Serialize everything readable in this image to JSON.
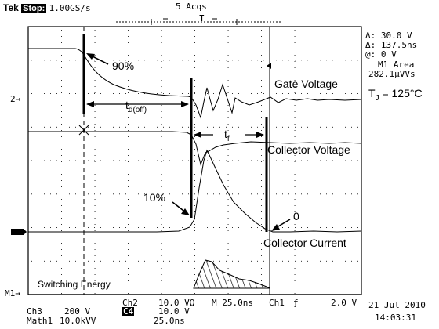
{
  "header": {
    "brand": "Tek",
    "state": "Stop:",
    "sample_rate": "1.00GS/s",
    "acqs": "5 Acqs",
    "trigger_marker": "T"
  },
  "measurements": {
    "delta_v": "Δ: 30.0 V",
    "delta_t": "Δ: 137.5ns",
    "at": "@: 0 V",
    "area_label": "M1 Area",
    "area_value": "282.1µVVs"
  },
  "temperature": {
    "label": "T",
    "sub": "J",
    "value": " = 125°C"
  },
  "annotations": {
    "p90": "90%",
    "p10": "10%",
    "zero": "0",
    "td_label": "t",
    "td_sub": "d(off)",
    "tf_label": "t",
    "tf_sub": "f",
    "gate_voltage": "Gate Voltage",
    "collector_voltage": "Collector Voltage",
    "collector_current": "Collector Current",
    "switching_energy": "Switching Energy"
  },
  "markers": {
    "ch2": "2→",
    "m1": "M1→"
  },
  "footer": {
    "ch3": "Ch3",
    "ch3_scale": "200 V",
    "ch2": "Ch2",
    "ch2_scale": "10.0 VΩ",
    "c4": "C4",
    "c4_scale": "10.0 V",
    "math1": "Math1",
    "math1_scale": "10.0kVV",
    "math1_time": "25.0ns",
    "timebase": "M 25.0ns",
    "trigger_src": "Ch1",
    "trigger_slope": "ƒ",
    "trigger_level": "2.0 V",
    "date": "21 Jul 2010",
    "time": "14:03:31"
  }
}
